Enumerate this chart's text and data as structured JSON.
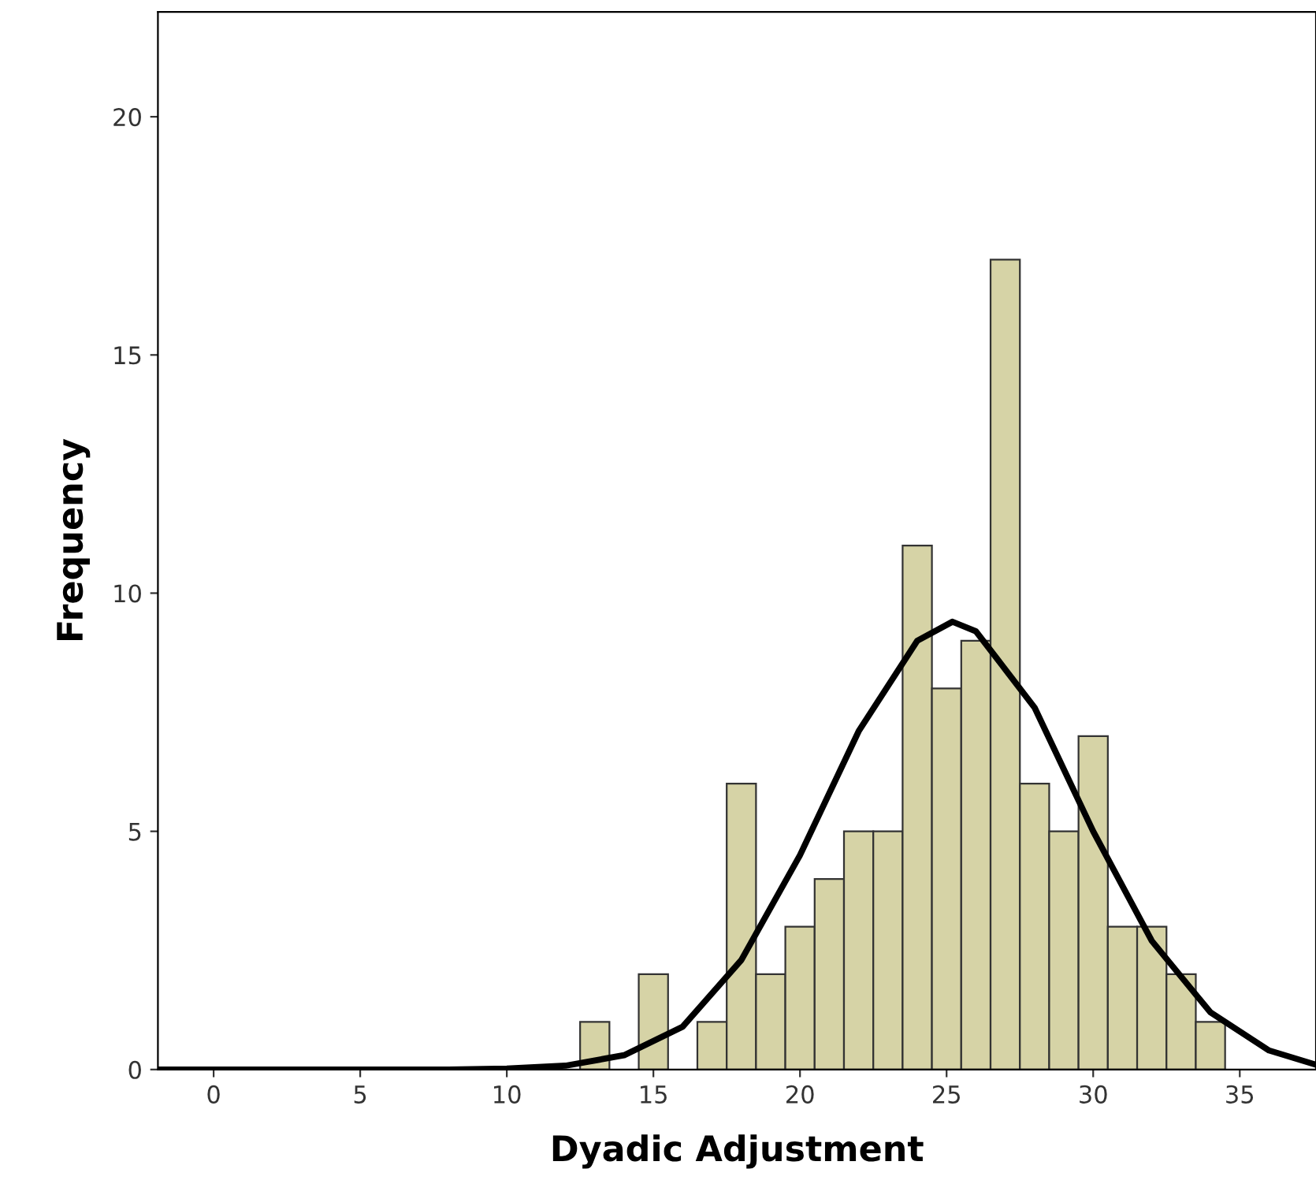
{
  "chart_data": {
    "type": "histogram",
    "xlabel": "Dyadic Adjustment",
    "ylabel": "Frequency",
    "xlim": [
      -1.9,
      37.6
    ],
    "ylim": [
      0,
      22.2
    ],
    "xticks": [
      0,
      5,
      10,
      15,
      20,
      25,
      30,
      35
    ],
    "yticks": [
      0,
      5,
      10,
      15,
      20
    ],
    "grid": false,
    "legend": false,
    "series": [
      {
        "type": "histogram",
        "color": "#d6d3a6",
        "bins": [
          12.5,
          13.5,
          14.5,
          15.5,
          16.5,
          17.5,
          18.5,
          19.5,
          20.5,
          21.5,
          22.5,
          23.5,
          24.5,
          25.5,
          26.5,
          27.5,
          28.5,
          29.5,
          30.5,
          31.5,
          32.5,
          33.5,
          34.5
        ],
        "values": [
          1,
          0,
          2,
          0,
          1,
          6,
          2,
          3,
          4,
          5,
          5,
          11,
          8,
          9,
          17,
          6,
          5,
          7,
          3,
          3,
          2,
          1
        ]
      },
      {
        "type": "line",
        "color": "#000000",
        "x": [
          -1.9,
          5,
          8,
          10,
          12,
          14,
          16,
          18,
          20,
          22,
          24,
          25.2,
          26,
          28,
          30,
          32,
          34,
          36,
          37.6
        ],
        "values": [
          0,
          0,
          0,
          0.02,
          0.08,
          0.3,
          0.9,
          2.3,
          4.5,
          7.1,
          9.0,
          9.4,
          9.2,
          7.6,
          5.0,
          2.7,
          1.2,
          0.4,
          0.1
        ]
      }
    ]
  }
}
